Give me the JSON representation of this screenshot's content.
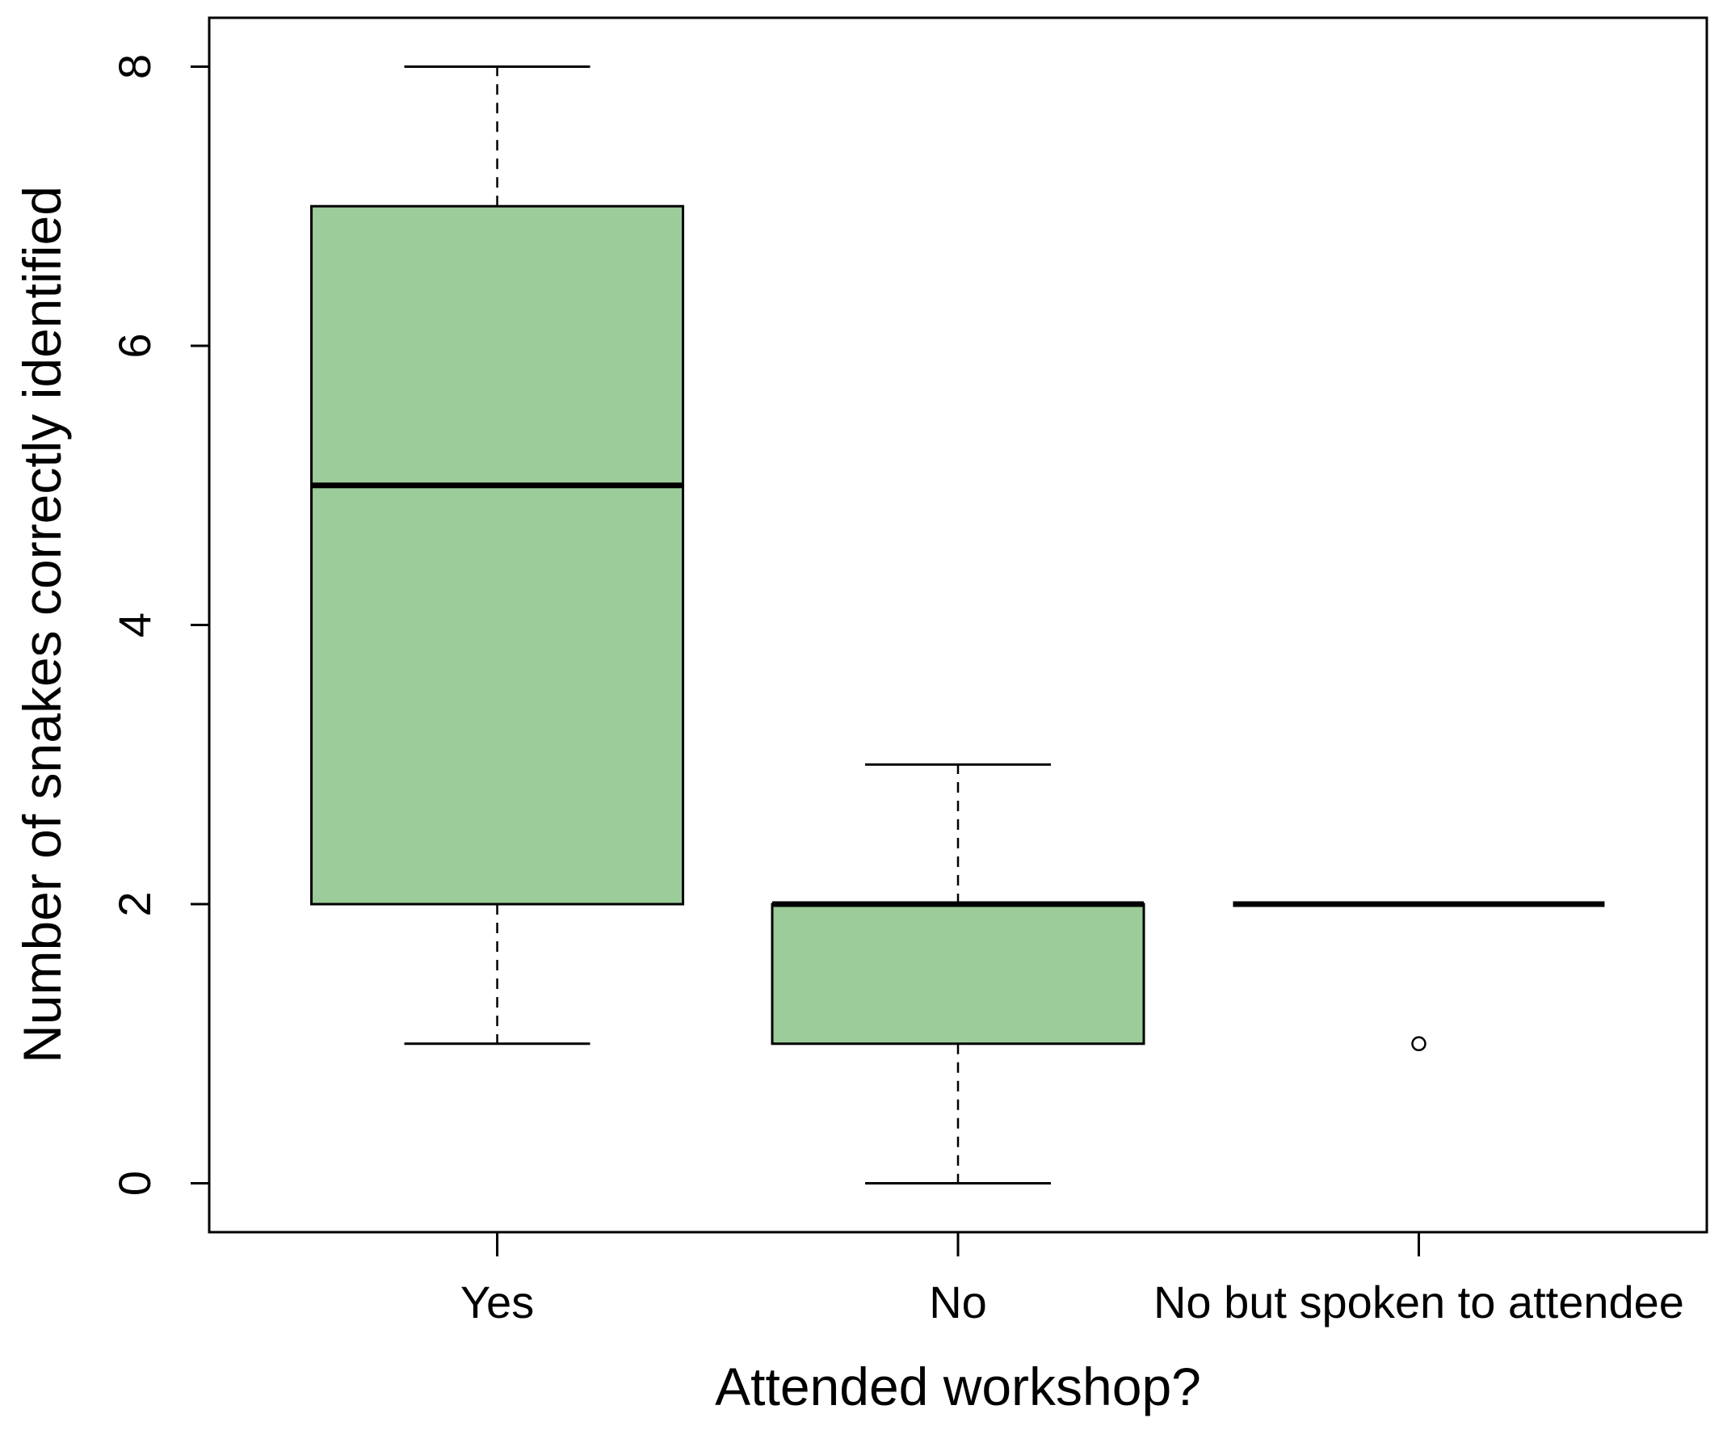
{
  "chart_data": {
    "type": "box",
    "xlabel": "Attended workshop?",
    "ylabel": "Number of snakes correctly identified",
    "ylim": [
      -0.35,
      8.35
    ],
    "yticks": [
      0,
      2,
      4,
      6,
      8
    ],
    "grid": false,
    "colors": {
      "box_fill": "#9ccc9a",
      "stroke": "#000000",
      "background": "#ffffff"
    },
    "categories": [
      "Yes",
      "No",
      "No but spoken to attendee"
    ],
    "boxes": [
      {
        "category": "Yes",
        "whisker_low": 1,
        "q1": 2,
        "median": 5,
        "q3": 7,
        "whisker_high": 8,
        "outliers": []
      },
      {
        "category": "No",
        "whisker_low": 0,
        "q1": 1,
        "median": 2,
        "q3": 2,
        "whisker_high": 3,
        "outliers": []
      },
      {
        "category": "No but spoken to attendee",
        "whisker_low": 2,
        "q1": 2,
        "median": 2,
        "q3": 2,
        "whisker_high": 2,
        "outliers": [
          1
        ]
      }
    ]
  }
}
